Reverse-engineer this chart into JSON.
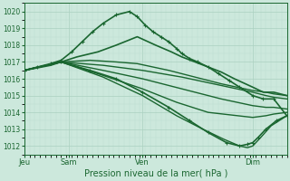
{
  "title": "Pression niveau de la mer( hPa )",
  "bg_color": "#cce8dc",
  "plot_bg_color": "#cce8dc",
  "grid_color_major": "#aad0c0",
  "grid_color_minor": "#bcddd0",
  "line_color": "#1a6630",
  "ylim": [
    1011.5,
    1020.5
  ],
  "yticks": [
    1012,
    1013,
    1014,
    1015,
    1016,
    1017,
    1018,
    1019,
    1020
  ],
  "xtick_labels": [
    "Jeu",
    "Sam",
    "Ven",
    "Dim"
  ],
  "xtick_positions": [
    0.0,
    0.17,
    0.45,
    0.87
  ],
  "lines": [
    {
      "x": [
        0.0,
        0.05,
        0.1,
        0.14,
        0.18,
        0.22,
        0.26,
        0.3,
        0.35,
        0.4,
        0.43,
        0.46,
        0.49,
        0.52,
        0.55,
        0.58,
        0.6,
        0.63,
        0.66,
        0.7,
        0.74,
        0.78,
        0.82,
        0.87,
        0.91,
        0.95,
        1.0
      ],
      "y": [
        1016.5,
        1016.7,
        1016.9,
        1017.1,
        1017.6,
        1018.2,
        1018.8,
        1019.3,
        1019.8,
        1020.0,
        1019.7,
        1019.2,
        1018.8,
        1018.5,
        1018.2,
        1017.8,
        1017.5,
        1017.2,
        1017.0,
        1016.7,
        1016.3,
        1015.9,
        1015.5,
        1015.0,
        1014.8,
        1014.8,
        1013.8
      ],
      "marker": true,
      "lw": 1.2
    },
    {
      "x": [
        0.0,
        0.1,
        0.14,
        0.2,
        0.28,
        0.35,
        0.43,
        0.5,
        0.56,
        0.6,
        0.65,
        0.7,
        0.75,
        0.8,
        0.87,
        0.91,
        0.95,
        1.0
      ],
      "y": [
        1016.5,
        1016.8,
        1017.0,
        1017.3,
        1017.6,
        1018.0,
        1018.5,
        1018.0,
        1017.6,
        1017.3,
        1017.0,
        1016.7,
        1016.4,
        1016.0,
        1015.5,
        1015.2,
        1015.2,
        1015.0
      ],
      "marker": false,
      "lw": 1.2
    },
    {
      "x": [
        0.0,
        0.14,
        0.25,
        0.35,
        0.43,
        0.55,
        0.65,
        0.75,
        0.87,
        0.92,
        0.95,
        1.0
      ],
      "y": [
        1016.5,
        1017.0,
        1017.1,
        1017.0,
        1016.9,
        1016.5,
        1016.1,
        1015.7,
        1015.3,
        1015.2,
        1015.1,
        1015.0
      ],
      "marker": false,
      "lw": 1.0
    },
    {
      "x": [
        0.0,
        0.14,
        0.3,
        0.45,
        0.6,
        0.75,
        0.87,
        0.92,
        0.95,
        1.0
      ],
      "y": [
        1016.5,
        1017.0,
        1016.8,
        1016.5,
        1016.1,
        1015.6,
        1015.2,
        1015.0,
        1014.9,
        1014.8
      ],
      "marker": false,
      "lw": 1.0
    },
    {
      "x": [
        0.0,
        0.14,
        0.3,
        0.45,
        0.6,
        0.75,
        0.87,
        0.92,
        0.95,
        1.0
      ],
      "y": [
        1016.5,
        1017.0,
        1016.5,
        1016.0,
        1015.4,
        1014.8,
        1014.4,
        1014.3,
        1014.3,
        1014.2
      ],
      "marker": false,
      "lw": 1.0
    },
    {
      "x": [
        0.0,
        0.14,
        0.3,
        0.45,
        0.58,
        0.7,
        0.87,
        0.92,
        0.95,
        1.0
      ],
      "y": [
        1016.5,
        1017.0,
        1016.2,
        1015.4,
        1014.6,
        1014.0,
        1013.7,
        1013.8,
        1013.9,
        1014.0
      ],
      "marker": false,
      "lw": 1.0
    },
    {
      "x": [
        0.0,
        0.14,
        0.25,
        0.35,
        0.45,
        0.55,
        0.63,
        0.7,
        0.77,
        0.82,
        0.85,
        0.87,
        0.89,
        0.92,
        0.96,
        1.0
      ],
      "y": [
        1016.5,
        1017.0,
        1016.5,
        1016.0,
        1015.2,
        1014.3,
        1013.5,
        1012.8,
        1012.2,
        1012.0,
        1012.1,
        1012.2,
        1012.5,
        1013.0,
        1013.5,
        1013.8
      ],
      "marker": true,
      "lw": 1.2
    },
    {
      "x": [
        0.0,
        0.14,
        0.3,
        0.45,
        0.58,
        0.68,
        0.76,
        0.82,
        0.85,
        0.87,
        0.9,
        0.94,
        1.0
      ],
      "y": [
        1016.5,
        1017.0,
        1016.1,
        1015.0,
        1013.8,
        1013.0,
        1012.4,
        1012.0,
        1011.9,
        1012.0,
        1012.5,
        1013.2,
        1013.8
      ],
      "marker": false,
      "lw": 1.0
    }
  ]
}
